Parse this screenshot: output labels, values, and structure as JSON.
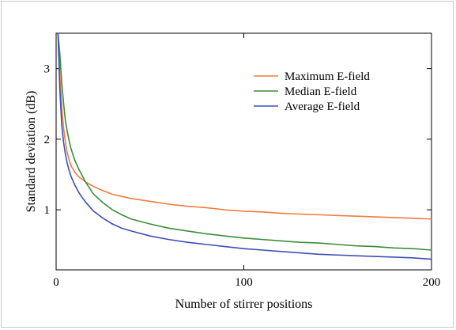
{
  "chart_data": {
    "type": "line",
    "title": "",
    "xlabel": "Number of stirrer positions",
    "ylabel": "Standard deviation (dB)",
    "xlim": [
      0,
      200
    ],
    "ylim": [
      0.15,
      3.5
    ],
    "x_ticks": [
      0,
      100,
      200
    ],
    "y_ticks": [
      1,
      2,
      3
    ],
    "grid": false,
    "legend_position": "top-right",
    "series": [
      {
        "name": "Maximum E-field",
        "color": "#f07c3c",
        "x": [
          1,
          2,
          3,
          4,
          5,
          6,
          7,
          8,
          10,
          12,
          14,
          16,
          18,
          20,
          25,
          30,
          35,
          40,
          50,
          60,
          70,
          80,
          90,
          100,
          110,
          120,
          130,
          140,
          150,
          160,
          170,
          180,
          190,
          200
        ],
        "y": [
          3.5,
          2.9,
          2.45,
          2.15,
          1.95,
          1.8,
          1.7,
          1.62,
          1.53,
          1.47,
          1.43,
          1.39,
          1.36,
          1.33,
          1.27,
          1.22,
          1.19,
          1.16,
          1.12,
          1.08,
          1.05,
          1.03,
          1.0,
          0.98,
          0.97,
          0.95,
          0.94,
          0.93,
          0.92,
          0.91,
          0.9,
          0.89,
          0.88,
          0.87
        ]
      },
      {
        "name": "Median E-field",
        "color": "#3c8c3c",
        "x": [
          1,
          2,
          3,
          4,
          5,
          6,
          7,
          8,
          10,
          12,
          14,
          16,
          18,
          20,
          25,
          30,
          35,
          40,
          50,
          60,
          70,
          80,
          90,
          100,
          110,
          120,
          130,
          140,
          150,
          160,
          170,
          180,
          190,
          200
        ],
        "y": [
          3.5,
          3.2,
          2.8,
          2.5,
          2.25,
          2.1,
          1.97,
          1.86,
          1.7,
          1.58,
          1.48,
          1.38,
          1.3,
          1.22,
          1.1,
          1.0,
          0.93,
          0.87,
          0.8,
          0.74,
          0.7,
          0.66,
          0.63,
          0.6,
          0.58,
          0.56,
          0.54,
          0.53,
          0.51,
          0.49,
          0.48,
          0.46,
          0.45,
          0.43
        ]
      },
      {
        "name": "Average E-field",
        "color": "#3c50b4",
        "x": [
          1,
          2,
          3,
          4,
          5,
          6,
          7,
          8,
          10,
          12,
          14,
          16,
          18,
          20,
          25,
          30,
          35,
          40,
          50,
          60,
          70,
          80,
          90,
          100,
          110,
          120,
          130,
          140,
          150,
          160,
          170,
          180,
          190,
          200
        ],
        "y": [
          3.5,
          2.7,
          2.2,
          1.95,
          1.78,
          1.65,
          1.55,
          1.47,
          1.35,
          1.25,
          1.17,
          1.1,
          1.04,
          0.98,
          0.88,
          0.8,
          0.74,
          0.7,
          0.63,
          0.58,
          0.54,
          0.51,
          0.48,
          0.45,
          0.43,
          0.41,
          0.39,
          0.37,
          0.36,
          0.35,
          0.34,
          0.33,
          0.32,
          0.3
        ]
      }
    ]
  }
}
